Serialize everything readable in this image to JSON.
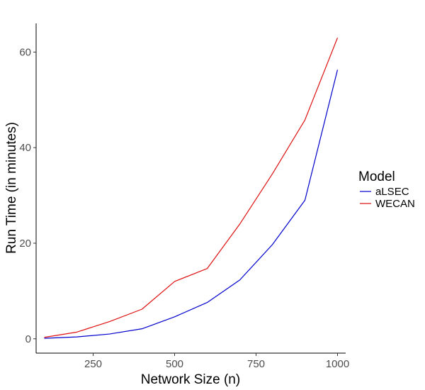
{
  "chart_data": {
    "type": "line",
    "title": "",
    "xlabel": "Network Size (n)",
    "ylabel": "Run Time (in minutes)",
    "xlim": [
      75,
      1025
    ],
    "ylim": [
      -3,
      66
    ],
    "x_ticks": [
      250,
      500,
      750,
      1000
    ],
    "y_ticks": [
      0,
      20,
      40,
      60
    ],
    "grid": false,
    "legend": {
      "title": "Model",
      "placement": "right"
    },
    "x": [
      100,
      200,
      300,
      400,
      500,
      600,
      700,
      800,
      900,
      1000
    ],
    "series": [
      {
        "name": "aLSEC",
        "color": "#0000cc",
        "values": [
          0.1,
          0.4,
          1.0,
          2.1,
          4.6,
          7.6,
          12.3,
          19.7,
          29.0,
          56.3
        ]
      },
      {
        "name": "WECAN",
        "color": "#dd1111",
        "values": [
          0.3,
          1.4,
          3.6,
          6.2,
          12.0,
          14.7,
          24.0,
          34.5,
          45.8,
          63.0
        ]
      }
    ]
  }
}
